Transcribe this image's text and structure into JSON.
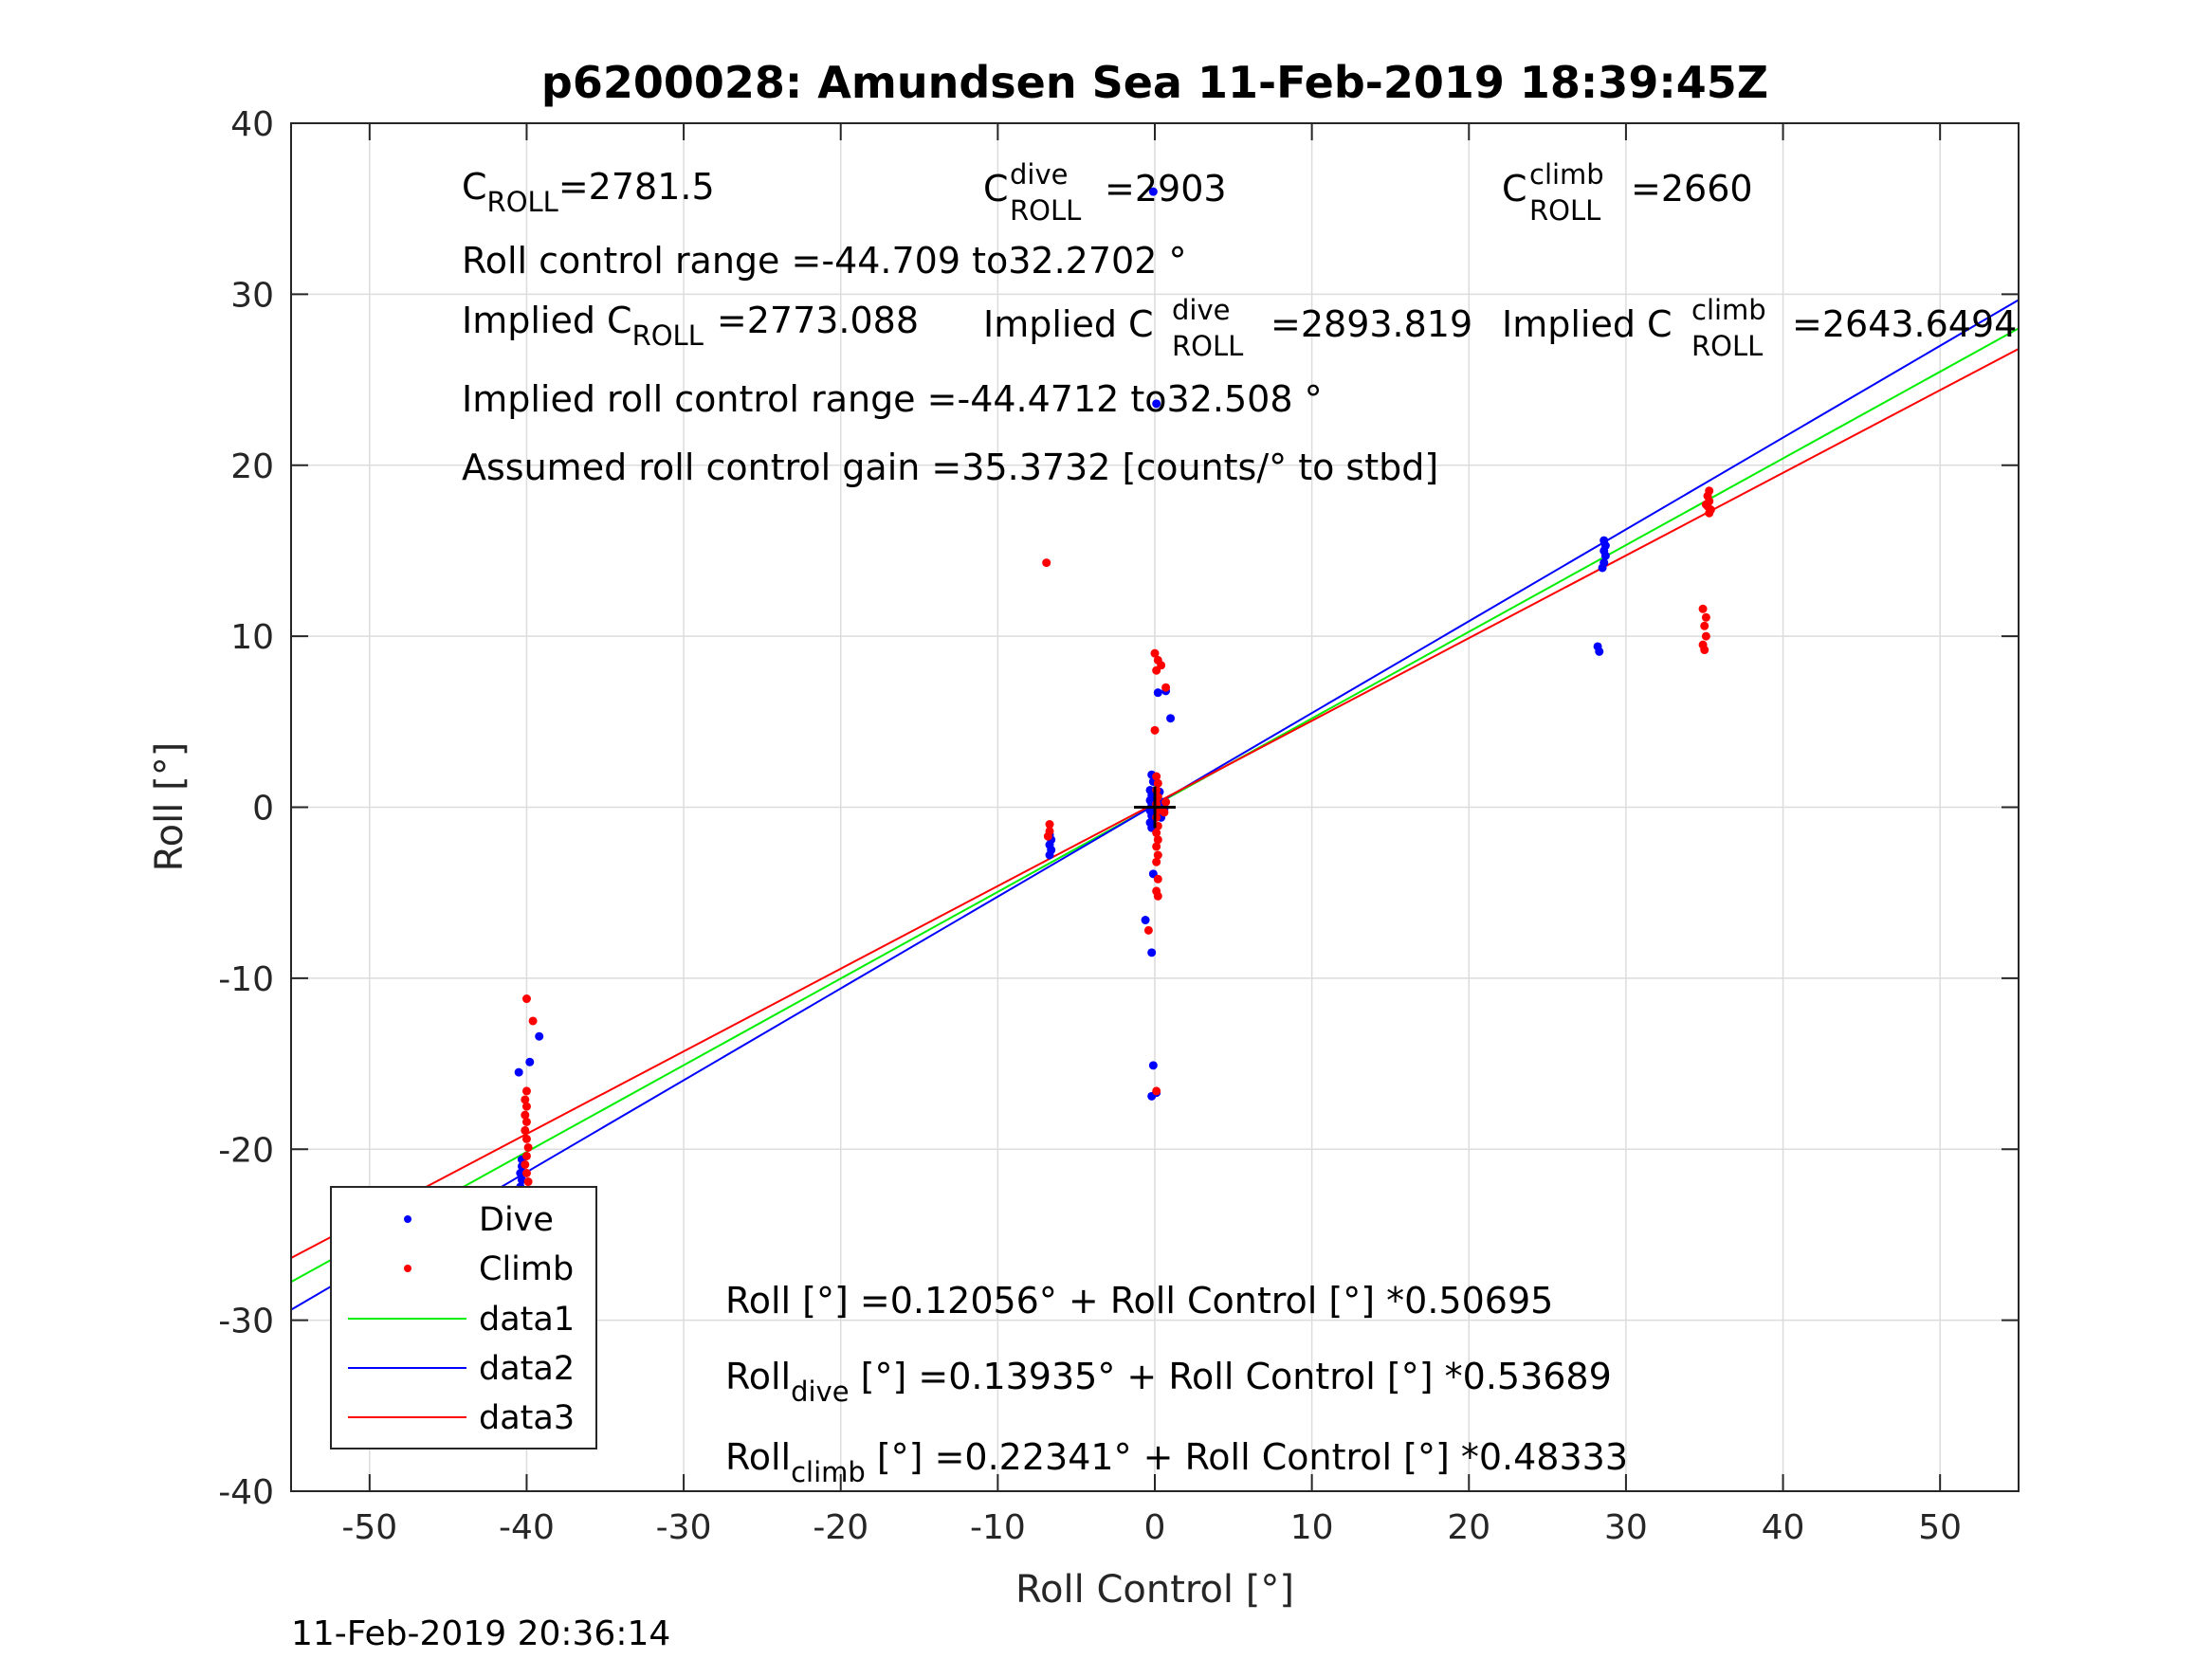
{
  "chart_data": {
    "type": "scatter",
    "title": "p6200028: Amundsen Sea 11-Feb-2019 18:39:45Z",
    "xlabel": "Roll Control [°]",
    "ylabel": "Roll [°]",
    "xlim": [
      -55,
      55
    ],
    "ylim": [
      -40,
      40
    ],
    "xticks": [
      -50,
      -40,
      -30,
      -20,
      -10,
      0,
      10,
      20,
      30,
      40,
      50
    ],
    "yticks": [
      -40,
      -30,
      -20,
      -10,
      0,
      10,
      20,
      30,
      40
    ],
    "grid": true,
    "legend_position": "bottom-left",
    "timestamp": "11-Feb-2019 20:36:14",
    "colors": {
      "dive": "#0000ff",
      "climb": "#ff0000",
      "data1": "#00ee00",
      "data2": "#0000ff",
      "data3": "#ff0000",
      "marker": "#000000"
    },
    "annotations": {
      "croll_base": "C",
      "croll_sub": "ROLL",
      "croll_val": "=2781.5",
      "cdive_base": "C",
      "cdive_sup": "dive",
      "cdive_sub": "ROLL",
      "cdive_val": "=2903",
      "cclimb_base": "C",
      "cclimb_sup": "climb",
      "cclimb_sub": "ROLL",
      "cclimb_val": "=2660",
      "range_text": "Roll control range =-44.709 to32.2702 °",
      "impl_pre": "Implied C",
      "impl_sub": "ROLL",
      "impl_val": "=2773.088",
      "impl_dive_pre": "Implied C",
      "impl_dive_sup": "dive",
      "impl_dive_sub": "ROLL",
      "impl_dive_val": "=2893.819",
      "impl_climb_pre": "Implied C",
      "impl_climb_sup": "climb",
      "impl_climb_sub": "ROLL",
      "impl_climb_val": "=2643.6494",
      "impl_range_text": "Implied roll control range =-44.4712 to32.508 °",
      "gain_text": "Assumed roll control gain =35.3732 [counts/° to stbd]",
      "fit_all": "Roll [°] =0.12056° + Roll Control [°] *0.50695",
      "fit_dive_base": "Roll",
      "fit_dive_sub": "dive",
      "fit_dive_rest": " [°] =0.13935° + Roll Control [°] *0.53689",
      "fit_climb_base": "Roll",
      "fit_climb_sub": "climb",
      "fit_climb_rest": " [°] =0.22341° + Roll Control [°] *0.48333"
    },
    "series": [
      {
        "name": "Dive",
        "kind": "points",
        "color": "#0000ff",
        "points": [
          [
            -47.5,
            -24.1
          ],
          [
            -40.3,
            -20.6
          ],
          [
            -40.3,
            -21.0
          ],
          [
            -40.4,
            -21.4
          ],
          [
            -40.3,
            -21.8
          ],
          [
            -40.4,
            -22.2
          ],
          [
            -40.3,
            -22.6
          ],
          [
            -40.4,
            -23.0
          ],
          [
            -40.3,
            -23.4
          ],
          [
            -40.4,
            -24.2
          ],
          [
            -40.3,
            -25.3
          ],
          [
            -40.4,
            -25.8
          ],
          [
            -40.3,
            -26.5
          ],
          [
            -40.2,
            -30.3
          ],
          [
            -40.5,
            -15.5
          ],
          [
            -39.8,
            -14.9
          ],
          [
            -39.2,
            -13.4
          ],
          [
            -6.7,
            -1.6
          ],
          [
            -6.6,
            -1.9
          ],
          [
            -6.7,
            -2.2
          ],
          [
            -6.6,
            -2.5
          ],
          [
            -6.7,
            -2.8
          ],
          [
            -0.3,
            1.0
          ],
          [
            -0.2,
            0.7
          ],
          [
            -0.3,
            0.4
          ],
          [
            -0.2,
            0.1
          ],
          [
            -0.3,
            -0.2
          ],
          [
            -0.2,
            -0.5
          ],
          [
            -0.3,
            -0.9
          ],
          [
            -0.2,
            -1.2
          ],
          [
            -0.1,
            1.5
          ],
          [
            -0.2,
            1.9
          ],
          [
            -0.1,
            -3.9
          ],
          [
            -0.6,
            -6.6
          ],
          [
            -0.2,
            -8.5
          ],
          [
            -0.1,
            -15.1
          ],
          [
            -0.2,
            -16.9
          ],
          [
            0.1,
            -16.7
          ],
          [
            0.1,
            23.6
          ],
          [
            -0.1,
            36.0
          ],
          [
            0.2,
            6.7
          ],
          [
            0.7,
            6.8
          ],
          [
            1.0,
            5.2
          ],
          [
            0.5,
            0.3
          ],
          [
            0.6,
            -0.1
          ],
          [
            0.4,
            -0.6
          ],
          [
            0.3,
            0.9
          ],
          [
            28.2,
            9.4
          ],
          [
            28.3,
            9.1
          ],
          [
            28.6,
            15.6
          ],
          [
            28.7,
            15.3
          ],
          [
            28.6,
            15.0
          ],
          [
            28.7,
            14.7
          ],
          [
            28.6,
            14.3
          ],
          [
            28.5,
            14.0
          ]
        ]
      },
      {
        "name": "Climb",
        "kind": "points",
        "color": "#ff0000",
        "points": [
          [
            -47.5,
            -27.1
          ],
          [
            -40.0,
            -11.2
          ],
          [
            -39.6,
            -12.5
          ],
          [
            -40.0,
            -16.6
          ],
          [
            -40.1,
            -17.1
          ],
          [
            -40.0,
            -17.5
          ],
          [
            -40.1,
            -18.0
          ],
          [
            -40.0,
            -18.4
          ],
          [
            -40.1,
            -18.9
          ],
          [
            -40.0,
            -19.4
          ],
          [
            -39.9,
            -19.9
          ],
          [
            -40.0,
            -20.4
          ],
          [
            -40.1,
            -20.9
          ],
          [
            -40.0,
            -21.4
          ],
          [
            -39.9,
            -21.9
          ],
          [
            -40.0,
            -22.4
          ],
          [
            -40.1,
            -22.8
          ],
          [
            -40.0,
            -23.2
          ],
          [
            -39.9,
            -23.8
          ],
          [
            -40.1,
            -24.4
          ],
          [
            -40.0,
            -24.9
          ],
          [
            -39.9,
            -25.5
          ],
          [
            -6.9,
            14.3
          ],
          [
            -6.7,
            -1.0
          ],
          [
            -6.7,
            -1.4
          ],
          [
            -6.8,
            -1.7
          ],
          [
            0.0,
            9.0
          ],
          [
            0.2,
            8.6
          ],
          [
            0.4,
            8.3
          ],
          [
            0.1,
            8.0
          ],
          [
            0.7,
            7.0
          ],
          [
            0.0,
            4.5
          ],
          [
            0.1,
            1.8
          ],
          [
            0.2,
            1.4
          ],
          [
            0.1,
            1.0
          ],
          [
            0.2,
            0.6
          ],
          [
            0.1,
            0.2
          ],
          [
            0.2,
            -0.2
          ],
          [
            0.1,
            -0.6
          ],
          [
            0.2,
            -1.1
          ],
          [
            0.1,
            -1.5
          ],
          [
            0.2,
            -1.9
          ],
          [
            0.1,
            -2.3
          ],
          [
            0.2,
            -2.8
          ],
          [
            0.1,
            -3.2
          ],
          [
            0.2,
            -4.2
          ],
          [
            0.1,
            -4.9
          ],
          [
            0.2,
            -5.2
          ],
          [
            -0.4,
            -7.2
          ],
          [
            0.1,
            -16.6
          ],
          [
            0.7,
            0.3
          ],
          [
            0.6,
            -0.3
          ],
          [
            34.9,
            11.6
          ],
          [
            35.1,
            11.1
          ],
          [
            35.0,
            10.6
          ],
          [
            35.1,
            10.0
          ],
          [
            34.9,
            9.5
          ],
          [
            35.0,
            9.2
          ],
          [
            35.3,
            18.5
          ],
          [
            35.2,
            18.2
          ],
          [
            35.3,
            17.9
          ],
          [
            35.2,
            17.6
          ],
          [
            35.4,
            17.4
          ],
          [
            35.1,
            17.7
          ],
          [
            35.3,
            17.2
          ]
        ]
      },
      {
        "name": "data1",
        "kind": "line",
        "color": "#00ee00",
        "intercept": 0.12056,
        "slope": 0.50695,
        "x": [
          -55,
          55
        ]
      },
      {
        "name": "data2",
        "kind": "line",
        "color": "#0000ff",
        "intercept": 0.13935,
        "slope": 0.53689,
        "x": [
          -55,
          55
        ]
      },
      {
        "name": "data3",
        "kind": "line",
        "color": "#ff0000",
        "intercept": 0.22341,
        "slope": 0.48333,
        "x": [
          -55,
          55
        ]
      }
    ],
    "origin_marker": [
      0,
      0
    ]
  }
}
